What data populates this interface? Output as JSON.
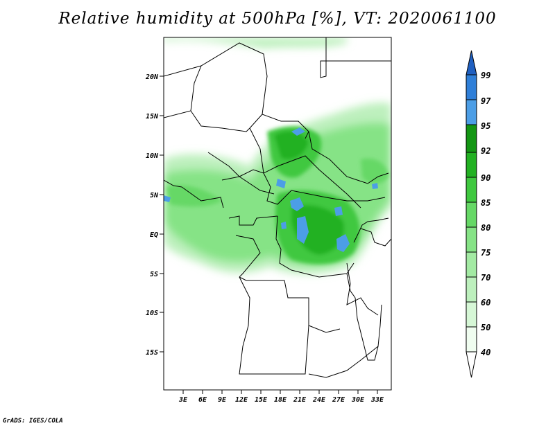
{
  "title": "Relative humidity at 500hPa [%], VT: 2020061100",
  "footer": "GrADS: IGES/COLA",
  "lat_labels": [
    "20N",
    "15N",
    "10N",
    "5N",
    "EQ",
    "5S",
    "10S",
    "15S"
  ],
  "lon_labels": [
    "3E",
    "6E",
    "9E",
    "12E",
    "15E",
    "18E",
    "21E",
    "24E",
    "27E",
    "30E",
    "33E"
  ],
  "colorbar": {
    "labels": [
      "40",
      "50",
      "60",
      "70",
      "75",
      "80",
      "85",
      "90",
      "92",
      "95",
      "97",
      "99"
    ],
    "colors": [
      "#f0fdf0",
      "#d6f7d6",
      "#bdf0bd",
      "#a3eaa3",
      "#86e386",
      "#66d866",
      "#3fc83f",
      "#22b122",
      "#139613",
      "#4c9ee6",
      "#2f7fd8",
      "#1f5fc0"
    ],
    "below_color": "#ffffff",
    "above_color": "#1f5fc0"
  }
}
